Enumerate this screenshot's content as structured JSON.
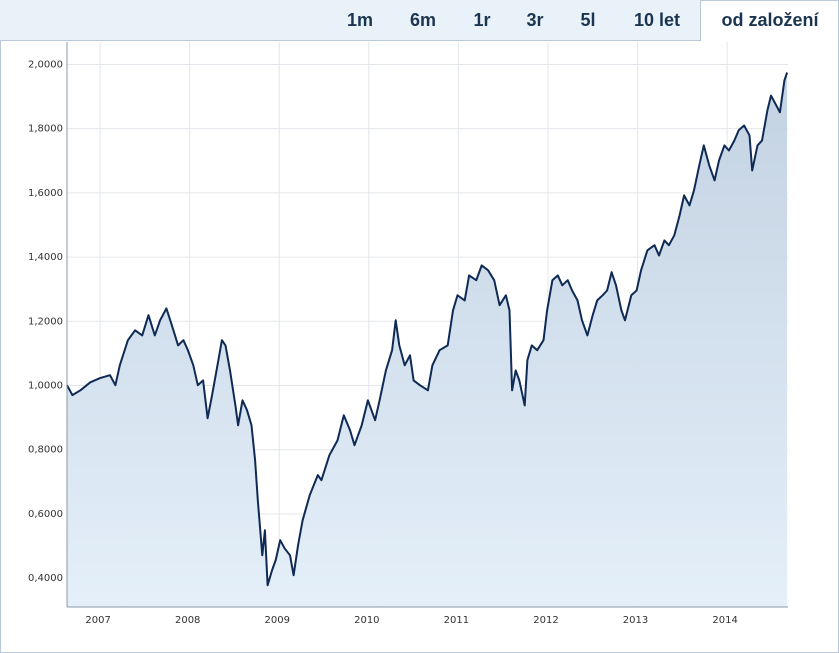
{
  "tabs": [
    "1m",
    "6m",
    "1r",
    "3r",
    "5l",
    "10 let",
    "od založení"
  ],
  "active_tab": 6,
  "chart_data": {
    "type": "line",
    "x": [
      2006.63,
      2006.69,
      2006.78,
      2006.89,
      2007.0,
      2007.11,
      2007.17,
      2007.22,
      2007.31,
      2007.39,
      2007.47,
      2007.54,
      2007.61,
      2007.67,
      2007.74,
      2007.8,
      2007.87,
      2007.93,
      2007.98,
      2008.04,
      2008.09,
      2008.15,
      2008.2,
      2008.25,
      2008.32,
      2008.36,
      2008.4,
      2008.45,
      2008.51,
      2008.54,
      2008.59,
      2008.64,
      2008.69,
      2008.73,
      2008.76,
      2008.81,
      2008.84,
      2008.87,
      2008.92,
      2008.96,
      2009.01,
      2009.06,
      2009.12,
      2009.16,
      2009.21,
      2009.26,
      2009.34,
      2009.43,
      2009.47,
      2009.56,
      2009.65,
      2009.72,
      2009.79,
      2009.84,
      2009.92,
      2009.99,
      2010.07,
      2010.12,
      2010.19,
      2010.26,
      2010.3,
      2010.34,
      2010.4,
      2010.46,
      2010.5,
      2010.57,
      2010.66,
      2010.71,
      2010.79,
      2010.88,
      2010.94,
      2010.99,
      2011.07,
      2011.12,
      2011.2,
      2011.26,
      2011.33,
      2011.4,
      2011.46,
      2011.53,
      2011.57,
      2011.6,
      2011.64,
      2011.68,
      2011.74,
      2011.77,
      2011.82,
      2011.88,
      2011.95,
      2011.99,
      2012.05,
      2012.11,
      2012.16,
      2012.22,
      2012.27,
      2012.33,
      2012.38,
      2012.44,
      2012.5,
      2012.55,
      2012.61,
      2012.66,
      2012.71,
      2012.76,
      2012.82,
      2012.86,
      2012.93,
      2012.99,
      2013.04,
      2013.11,
      2013.19,
      2013.24,
      2013.3,
      2013.35,
      2013.41,
      2013.47,
      2013.52,
      2013.58,
      2013.63,
      2013.69,
      2013.74,
      2013.8,
      2013.86,
      2013.91,
      2013.97,
      2014.02,
      2014.08,
      2014.13,
      2014.19,
      2014.25,
      2014.28,
      2014.34,
      2014.39,
      2014.45,
      2014.49,
      2014.55,
      2014.59,
      2014.64,
      2014.67
    ],
    "series": [
      {
        "color": "#0e2a55",
        "values": [
          1.001,
          0.97,
          0.985,
          1.01,
          1.023,
          1.032,
          1.001,
          1.063,
          1.141,
          1.172,
          1.156,
          1.219,
          1.156,
          1.203,
          1.24,
          1.188,
          1.125,
          1.141,
          1.11,
          1.063,
          1.001,
          1.016,
          0.898,
          0.97,
          1.079,
          1.141,
          1.125,
          1.047,
          0.938,
          0.876,
          0.954,
          0.923,
          0.876,
          0.767,
          0.643,
          0.471,
          0.549,
          0.378,
          0.425,
          0.456,
          0.518,
          0.493,
          0.471,
          0.409,
          0.503,
          0.58,
          0.658,
          0.721,
          0.705,
          0.783,
          0.829,
          0.907,
          0.861,
          0.814,
          0.876,
          0.954,
          0.892,
          0.954,
          1.047,
          1.11,
          1.203,
          1.125,
          1.063,
          1.094,
          1.016,
          1.001,
          0.985,
          1.063,
          1.11,
          1.125,
          1.234,
          1.281,
          1.265,
          1.343,
          1.328,
          1.374,
          1.359,
          1.328,
          1.25,
          1.281,
          1.234,
          0.985,
          1.047,
          1.016,
          0.938,
          1.079,
          1.125,
          1.11,
          1.141,
          1.234,
          1.328,
          1.343,
          1.312,
          1.328,
          1.296,
          1.265,
          1.203,
          1.156,
          1.219,
          1.265,
          1.281,
          1.296,
          1.353,
          1.312,
          1.234,
          1.203,
          1.281,
          1.296,
          1.359,
          1.421,
          1.437,
          1.405,
          1.452,
          1.437,
          1.468,
          1.53,
          1.592,
          1.561,
          1.608,
          1.686,
          1.748,
          1.686,
          1.639,
          1.701,
          1.748,
          1.732,
          1.763,
          1.795,
          1.81,
          1.779,
          1.67,
          1.748,
          1.763,
          1.857,
          1.903,
          1.872,
          1.851,
          1.95,
          1.975
        ]
      }
    ],
    "xlim": [
      2006.63,
      2014.68
    ],
    "xticks": [
      2007,
      2008,
      2009,
      2010,
      2011,
      2012,
      2013,
      2014
    ],
    "ylim": [
      0.31,
      2.07
    ],
    "yticks": [
      {
        "value": 0.4,
        "label": "0,4000"
      },
      {
        "value": 0.6,
        "label": "0,6000"
      },
      {
        "value": 0.8,
        "label": "0,8000"
      },
      {
        "value": 1.0,
        "label": "1,0000"
      },
      {
        "value": 1.2,
        "label": "1,2000"
      },
      {
        "value": 1.4,
        "label": "1,4000"
      },
      {
        "value": 1.6,
        "label": "1,6000"
      },
      {
        "value": 1.8,
        "label": "1,8000"
      },
      {
        "value": 2.0,
        "label": "2,0000"
      }
    ],
    "grid": true,
    "area": true
  }
}
